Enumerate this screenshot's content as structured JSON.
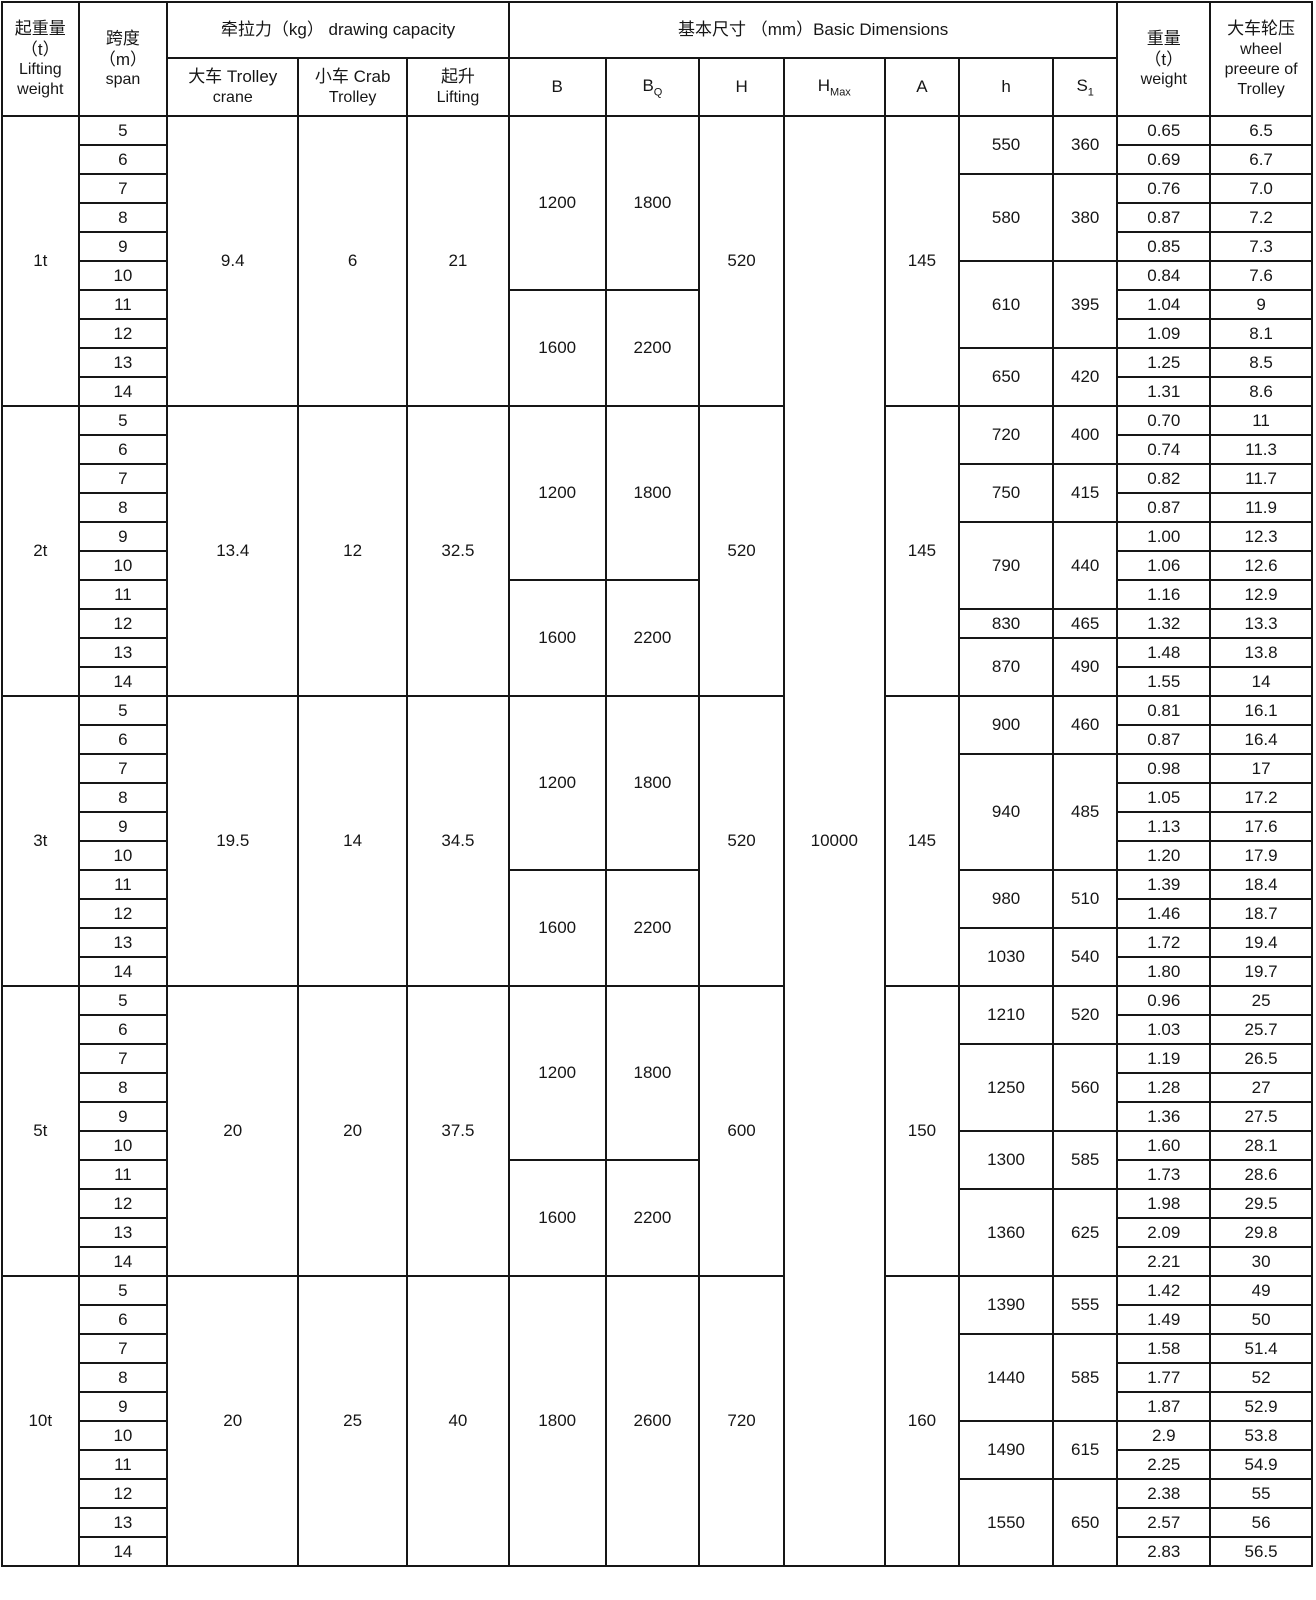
{
  "table": {
    "header": {
      "lifting_weight_zh": "起重量",
      "lifting_weight_unit": "（t）",
      "lifting_weight_en1": "Lifting",
      "lifting_weight_en2": "weight",
      "span_zh": "跨度",
      "span_unit": "（m）",
      "span_en": "span",
      "drawing_capacity": "牵拉力（kg） drawing capacity",
      "trolley_crane_l1": "大车 Trolley",
      "trolley_crane_l2": "crane",
      "crab_trolley_l1": "小车 Crab",
      "crab_trolley_l2": "Trolley",
      "lifting_l1": "起升",
      "lifting_l2": "Lifting",
      "basic_dimensions": "基本尺寸 （mm）Basic Dimensions",
      "col_b": "B",
      "col_bq_base": "B",
      "col_bq_sub": "Q",
      "col_h_upper": "H",
      "col_hmax_base": "H",
      "col_hmax_sub": "Max",
      "col_a": "A",
      "col_h_lower": "h",
      "col_s1_base": "S",
      "col_s1_sub": "1",
      "weight_zh": "重量",
      "weight_unit": "（t）",
      "weight_en": "weight",
      "wheel_zh": "大车轮压",
      "wheel_en1": "wheel",
      "wheel_en2": "preeure of",
      "wheel_en3": "Trolley"
    },
    "h_max_value": "10000",
    "blocks": [
      {
        "lifting_weight": "1t",
        "spans": [
          "5",
          "6",
          "7",
          "8",
          "9",
          "10",
          "11",
          "12",
          "13",
          "14"
        ],
        "trolley_crane": "9.4",
        "crab_trolley": "6",
        "lifting": "21",
        "H": "520",
        "A": "145",
        "b_groups": [
          {
            "rows": 6,
            "B": "1200",
            "BQ": "1800"
          },
          {
            "rows": 4,
            "B": "1600",
            "BQ": "2200"
          }
        ],
        "h_groups": [
          {
            "rows": 2,
            "h": "550",
            "S1": "360"
          },
          {
            "rows": 3,
            "h": "580",
            "S1": "380"
          },
          {
            "rows": 3,
            "h": "610",
            "S1": "395"
          },
          {
            "rows": 2,
            "h": "650",
            "S1": "420"
          }
        ],
        "weights": [
          "0.65",
          "0.69",
          "0.76",
          "0.87",
          "0.85",
          "0.84",
          "1.04",
          "1.09",
          "1.25",
          "1.31"
        ],
        "wheel_pressures": [
          "6.5",
          "6.7",
          "7.0",
          "7.2",
          "7.3",
          "7.6",
          "9",
          "8.1",
          "8.5",
          "8.6"
        ]
      },
      {
        "lifting_weight": "2t",
        "spans": [
          "5",
          "6",
          "7",
          "8",
          "9",
          "10",
          "11",
          "12",
          "13",
          "14"
        ],
        "trolley_crane": "13.4",
        "crab_trolley": "12",
        "lifting": "32.5",
        "H": "520",
        "A": "145",
        "b_groups": [
          {
            "rows": 6,
            "B": "1200",
            "BQ": "1800"
          },
          {
            "rows": 4,
            "B": "1600",
            "BQ": "2200"
          }
        ],
        "h_groups": [
          {
            "rows": 2,
            "h": "720",
            "S1": "400"
          },
          {
            "rows": 2,
            "h": "750",
            "S1": "415"
          },
          {
            "rows": 3,
            "h": "790",
            "S1": "440"
          },
          {
            "rows": 1,
            "h": "830",
            "S1": "465"
          },
          {
            "rows": 2,
            "h": "870",
            "S1": "490"
          }
        ],
        "weights": [
          "0.70",
          "0.74",
          "0.82",
          "0.87",
          "1.00",
          "1.06",
          "1.16",
          "1.32",
          "1.48",
          "1.55"
        ],
        "wheel_pressures": [
          "11",
          "11.3",
          "11.7",
          "11.9",
          "12.3",
          "12.6",
          "12.9",
          "13.3",
          "13.8",
          "14"
        ]
      },
      {
        "lifting_weight": "3t",
        "spans": [
          "5",
          "6",
          "7",
          "8",
          "9",
          "10",
          "11",
          "12",
          "13",
          "14"
        ],
        "trolley_crane": "19.5",
        "crab_trolley": "14",
        "lifting": "34.5",
        "H": "520",
        "A": "145",
        "b_groups": [
          {
            "rows": 6,
            "B": "1200",
            "BQ": "1800"
          },
          {
            "rows": 4,
            "B": "1600",
            "BQ": "2200"
          }
        ],
        "h_groups": [
          {
            "rows": 2,
            "h": "900",
            "S1": "460"
          },
          {
            "rows": 4,
            "h": "940",
            "S1": "485"
          },
          {
            "rows": 2,
            "h": "980",
            "S1": "510"
          },
          {
            "rows": 2,
            "h": "1030",
            "S1": "540"
          }
        ],
        "weights": [
          "0.81",
          "0.87",
          "0.98",
          "1.05",
          "1.13",
          "1.20",
          "1.39",
          "1.46",
          "1.72",
          "1.80"
        ],
        "wheel_pressures": [
          "16.1",
          "16.4",
          "17",
          "17.2",
          "17.6",
          "17.9",
          "18.4",
          "18.7",
          "19.4",
          "19.7"
        ]
      },
      {
        "lifting_weight": "5t",
        "spans": [
          "5",
          "6",
          "7",
          "8",
          "9",
          "10",
          "11",
          "12",
          "13",
          "14"
        ],
        "trolley_crane": "20",
        "crab_trolley": "20",
        "lifting": "37.5",
        "H": "600",
        "A": "150",
        "b_groups": [
          {
            "rows": 6,
            "B": "1200",
            "BQ": "1800"
          },
          {
            "rows": 4,
            "B": "1600",
            "BQ": "2200"
          }
        ],
        "h_groups": [
          {
            "rows": 2,
            "h": "1210",
            "S1": "520"
          },
          {
            "rows": 3,
            "h": "1250",
            "S1": "560"
          },
          {
            "rows": 2,
            "h": "1300",
            "S1": "585"
          },
          {
            "rows": 3,
            "h": "1360",
            "S1": "625"
          }
        ],
        "weights": [
          "0.96",
          "1.03",
          "1.19",
          "1.28",
          "1.36",
          "1.60",
          "1.73",
          "1.98",
          "2.09",
          "2.21"
        ],
        "wheel_pressures": [
          "25",
          "25.7",
          "26.5",
          "27",
          "27.5",
          "28.1",
          "28.6",
          "29.5",
          "29.8",
          "30"
        ]
      },
      {
        "lifting_weight": "10t",
        "spans": [
          "5",
          "6",
          "7",
          "8",
          "9",
          "10",
          "11",
          "12",
          "13",
          "14"
        ],
        "trolley_crane": "20",
        "crab_trolley": "25",
        "lifting": "40",
        "H": "720",
        "A": "160",
        "b_groups": [
          {
            "rows": 10,
            "B": "1800",
            "BQ": "2600"
          }
        ],
        "h_groups": [
          {
            "rows": 2,
            "h": "1390",
            "S1": "555"
          },
          {
            "rows": 3,
            "h": "1440",
            "S1": "585"
          },
          {
            "rows": 2,
            "h": "1490",
            "S1": "615"
          },
          {
            "rows": 3,
            "h": "1550",
            "S1": "650"
          }
        ],
        "weights": [
          "1.42",
          "1.49",
          "1.58",
          "1.77",
          "1.87",
          "2.9",
          "2.25",
          "2.38",
          "2.57",
          "2.83"
        ],
        "wheel_pressures": [
          "49",
          "50",
          "51.4",
          "52",
          "52.9",
          "53.8",
          "54.9",
          "55",
          "56",
          "56.5"
        ]
      }
    ]
  }
}
